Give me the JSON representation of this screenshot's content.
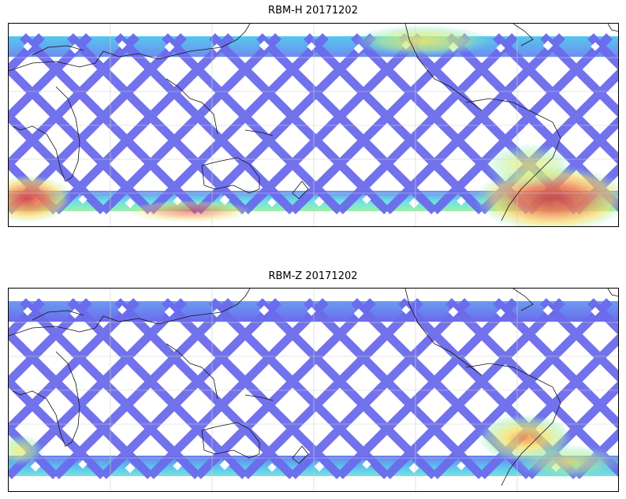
{
  "panels": [
    {
      "title": "RBM-H 20171202",
      "colorscale": "jet",
      "hotspots": [
        {
          "region": "south-atlantic-anomaly",
          "intensity": "high"
        },
        {
          "region": "southern-indian-ocean",
          "intensity": "high"
        },
        {
          "region": "north-atlantic",
          "intensity": "medium"
        }
      ]
    },
    {
      "title": "RBM-Z 20171202",
      "colorscale": "jet",
      "hotspots": [
        {
          "region": "south-atlantic-anomaly",
          "intensity": "medium"
        },
        {
          "region": "southern-ocean-band",
          "intensity": "low"
        }
      ]
    }
  ],
  "colors": {
    "low": "#6a6aee",
    "mid": "#55ccee",
    "high": "#f5e860",
    "peak": "#d05050"
  }
}
